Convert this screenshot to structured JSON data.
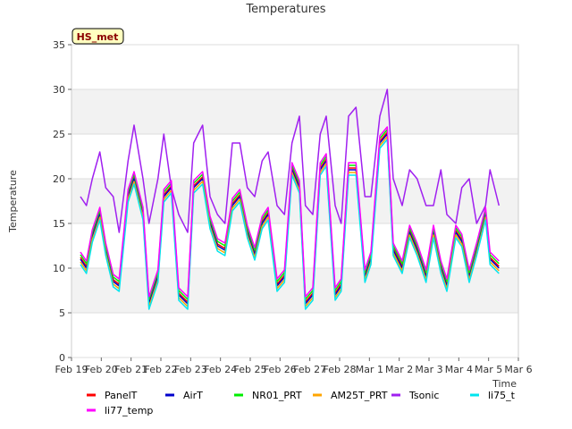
{
  "chart_data": {
    "type": "line",
    "title": "Temperatures",
    "xlabel": "Time",
    "ylabel": "Temperature",
    "badge": "HS_met",
    "xlim": [
      19,
      34
    ],
    "ylim": [
      0,
      35
    ],
    "yticks": [
      0,
      5,
      10,
      15,
      20,
      25,
      30,
      35
    ],
    "xticks": [
      {
        "day": 19,
        "label": "Feb 19"
      },
      {
        "day": 20,
        "label": "Feb 20"
      },
      {
        "day": 21,
        "label": "Feb 21"
      },
      {
        "day": 22,
        "label": "Feb 22"
      },
      {
        "day": 23,
        "label": "Feb 23"
      },
      {
        "day": 24,
        "label": "Feb 24"
      },
      {
        "day": 25,
        "label": "Feb 25"
      },
      {
        "day": 26,
        "label": "Feb 26"
      },
      {
        "day": 27,
        "label": "Feb 27"
      },
      {
        "day": 28,
        "label": "Feb 28"
      },
      {
        "day": 29,
        "label": "Mar 1"
      },
      {
        "day": 30,
        "label": "Mar 2"
      },
      {
        "day": 31,
        "label": "Mar 3"
      },
      {
        "day": 32,
        "label": "Mar 4"
      },
      {
        "day": 33,
        "label": "Mar 5"
      },
      {
        "day": 34,
        "label": "Mar 6"
      }
    ],
    "base_series": {
      "x": [
        19.3,
        19.5,
        19.7,
        19.95,
        20.15,
        20.4,
        20.6,
        20.9,
        21.1,
        21.4,
        21.6,
        21.9,
        22.1,
        22.35,
        22.6,
        22.9,
        23.1,
        23.4,
        23.65,
        23.9,
        24.15,
        24.4,
        24.65,
        24.9,
        25.15,
        25.4,
        25.6,
        25.9,
        26.15,
        26.4,
        26.65,
        26.85,
        27.1,
        27.35,
        27.55,
        27.85,
        28.05,
        28.3,
        28.55,
        28.85,
        29.05,
        29.35,
        29.6,
        29.8,
        30.1,
        30.35,
        30.6,
        30.9,
        31.15,
        31.4,
        31.6,
        31.9,
        32.1,
        32.35,
        32.6,
        32.9,
        33.05,
        33.35
      ],
      "y": [
        11,
        10,
        13.5,
        16,
        12,
        8.5,
        8,
        18,
        20,
        16,
        6,
        9,
        18,
        19,
        7,
        6,
        19,
        20,
        15,
        12.5,
        12,
        17,
        18,
        14,
        11.5,
        15,
        16,
        8,
        9,
        21,
        19,
        6,
        7,
        21,
        22,
        7,
        8,
        21,
        21,
        9,
        11,
        24,
        25,
        12,
        10,
        14,
        12,
        9,
        14,
        10,
        8,
        14,
        13,
        9,
        12,
        16,
        11,
        10
      ]
    },
    "series": [
      {
        "name": "PanelT",
        "color": "#ff0000",
        "offset": 0.2
      },
      {
        "name": "AirT",
        "color": "#0000cc",
        "offset": 0.0
      },
      {
        "name": "NR01_PRT",
        "color": "#00ee00",
        "offset": 0.5
      },
      {
        "name": "AM25T_PRT",
        "color": "#ffa500",
        "offset": -0.3
      },
      {
        "name": "Tsonic",
        "color": "#a020f0",
        "offset": 0.0,
        "y": [
          18,
          17,
          20,
          23,
          19,
          18,
          14,
          22,
          26,
          20,
          15,
          20,
          25,
          19,
          16,
          14,
          24,
          26,
          18,
          16,
          15,
          24,
          24,
          19,
          18,
          22,
          23,
          17,
          16,
          24,
          27,
          17,
          16,
          25,
          27,
          17,
          15,
          27,
          28,
          18,
          18,
          27,
          30,
          20,
          17,
          21,
          20,
          17,
          17,
          21,
          16,
          15,
          19,
          20,
          15,
          17,
          21,
          17
        ]
      },
      {
        "name": "li75_t",
        "color": "#00e5ee",
        "offset": -0.6
      },
      {
        "name": "li77_temp",
        "color": "#ff00ff",
        "offset": 0.8
      }
    ]
  }
}
